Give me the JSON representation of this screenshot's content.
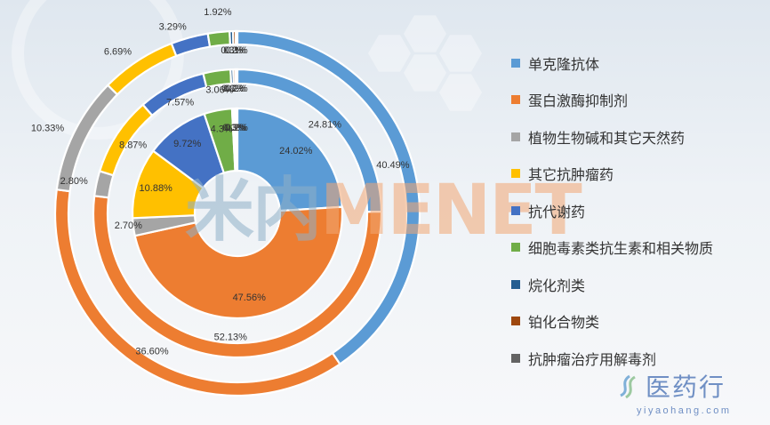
{
  "chart_data": {
    "type": "donut",
    "categories": [
      "单克隆抗体",
      "蛋白激酶抑制剂",
      "植物生物碱和其它天然药",
      "其它抗肿瘤药",
      "抗代谢药",
      "细胞毒素类抗生素和相关物质",
      "烷化剂类",
      "铂化合物类",
      "抗肿瘤治疗用解毒剂"
    ],
    "colors": [
      "#5b9bd5",
      "#ed7d31",
      "#a5a5a5",
      "#ffc000",
      "#4472c4",
      "#70ad47",
      "#255e91",
      "#9e480e",
      "#636363"
    ],
    "series": [
      {
        "ring": "inner",
        "values": [
          24.02,
          47.56,
          2.7,
          10.88,
          9.72,
          4.3,
          0.3,
          0.3,
          0.22
        ],
        "labels": [
          "24.02%",
          "47.56%",
          "2.70%",
          "10.88%",
          "9.72%",
          "4.3%",
          "0.3%",
          "0.3%",
          "0.2%"
        ]
      },
      {
        "ring": "middle",
        "values": [
          24.81,
          52.13,
          2.8,
          8.87,
          7.57,
          3.06,
          0.3,
          0.25,
          0.21
        ],
        "labels": [
          "24.81%",
          "52.13%",
          "2.80%",
          "8.87%",
          "7.57%",
          "3.06%",
          "0.3%",
          "0.2%",
          "0.2%"
        ]
      },
      {
        "ring": "outer",
        "values": [
          40.49,
          36.6,
          10.33,
          6.69,
          3.29,
          1.92,
          0.3,
          0.23,
          0.15
        ],
        "labels": [
          "40.49%",
          "36.60%",
          "10.33%",
          "6.69%",
          "3.29%",
          "1.92%",
          "0.3%",
          "0.2%",
          "0.1%"
        ]
      }
    ],
    "legend_position": "right"
  },
  "watermark": {
    "part_a": "米内",
    "part_b": "MENET"
  },
  "logo": {
    "name": "医药行",
    "url": "yiyaohang.com"
  }
}
